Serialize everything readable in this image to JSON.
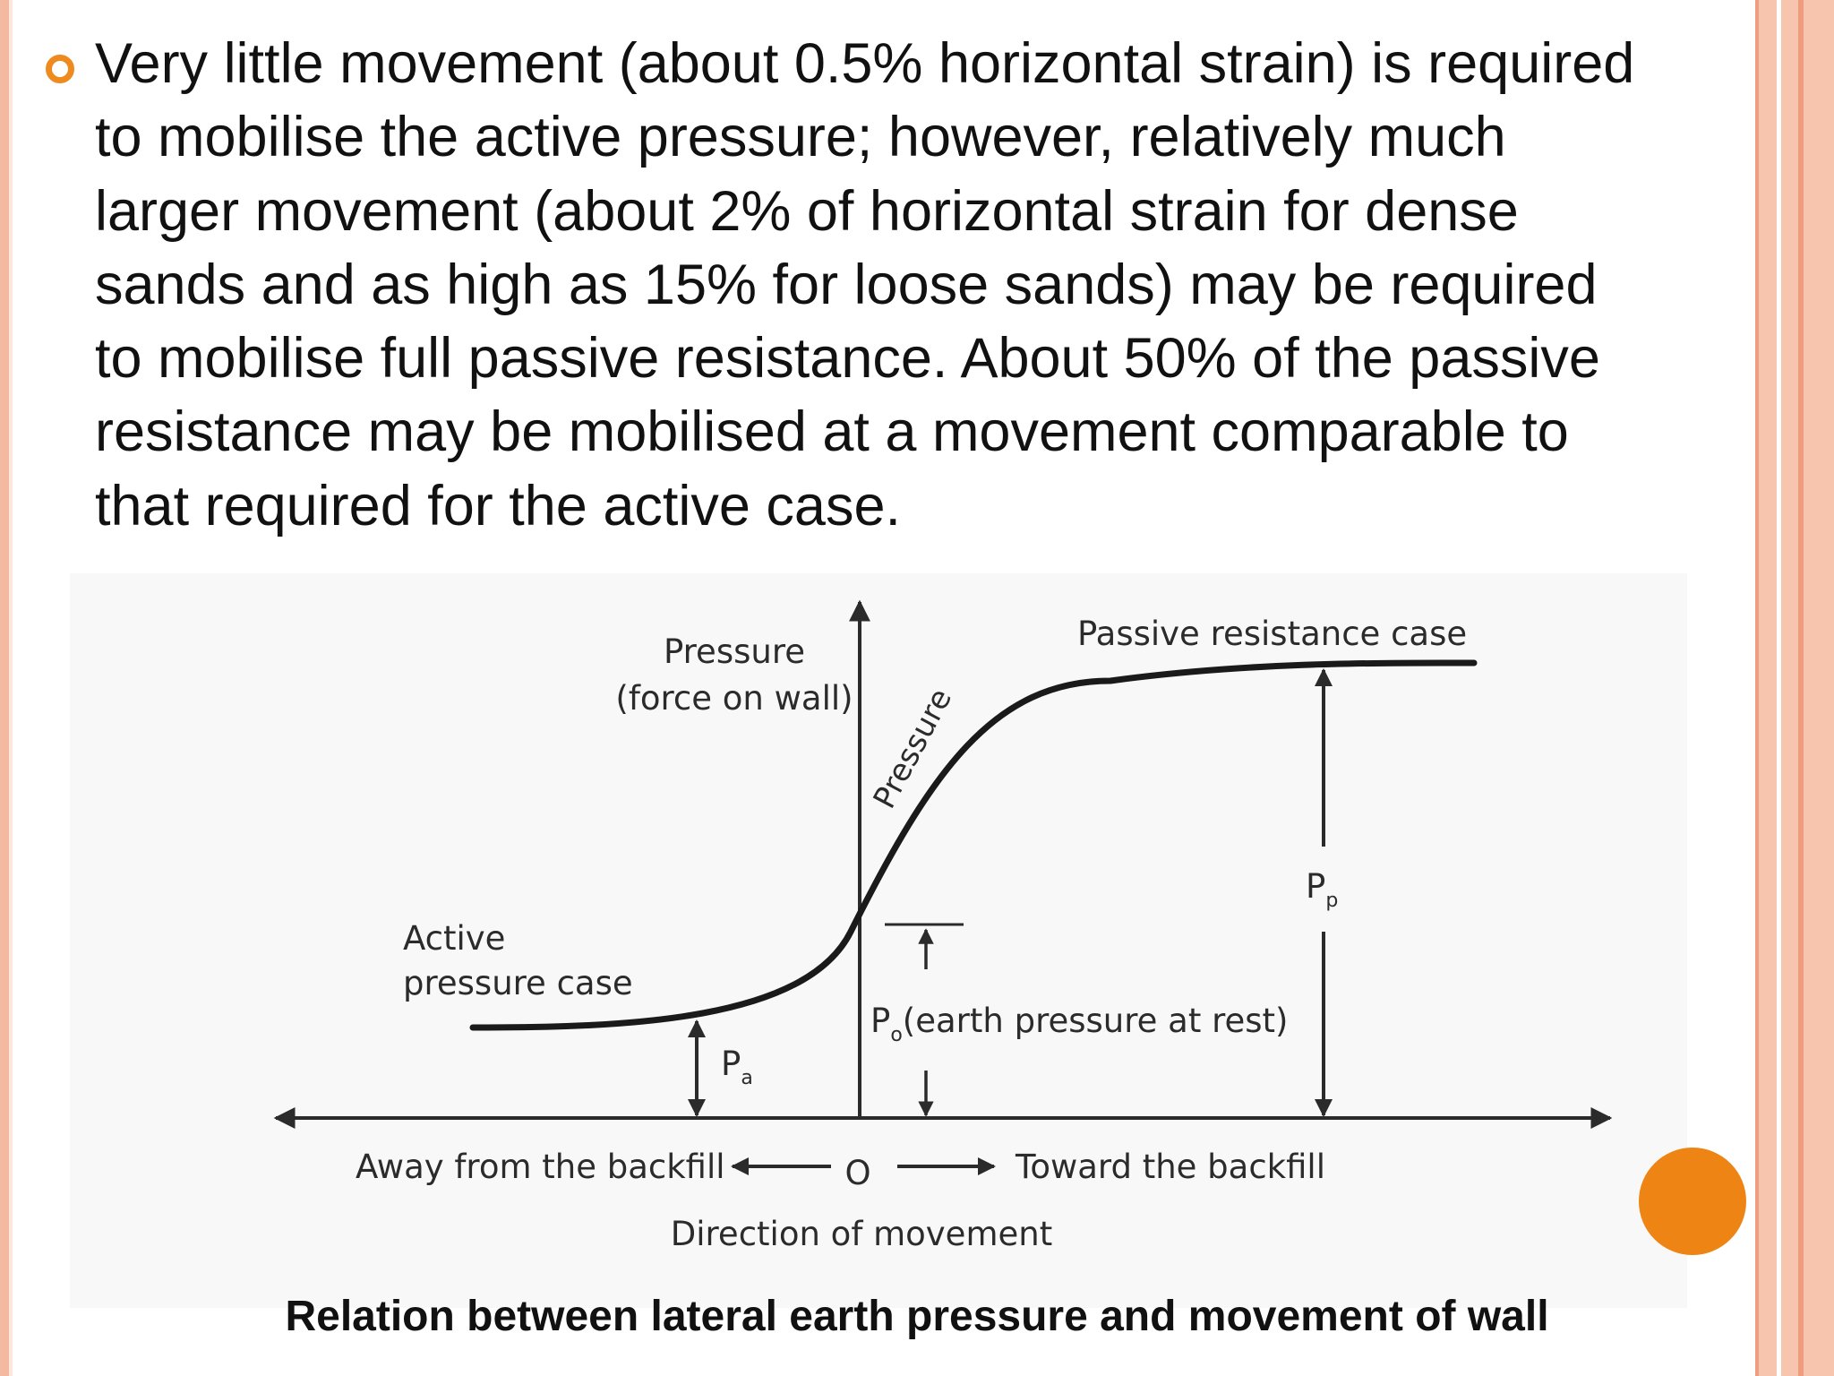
{
  "bullet": {
    "icon": "hollow-circle-bullet-icon",
    "lines": [
      "Very little movement (about 0.5% horizontal strain) is required",
      "to mobilise the active pressure; however, relatively much",
      "larger movement (about 2% of horizontal strain for dense",
      "sands and as high as 15% for loose sands) may be required",
      "to mobilise full passive resistance. About 50% of the passive",
      "resistance may be mobilised at a movement comparable to",
      "that required for the active case."
    ]
  },
  "figure": {
    "y_axis_label_1": "Pressure",
    "y_axis_label_2": "(force on wall)",
    "passive_label": "Passive resistance case",
    "curve_label": "Pressure",
    "active_label_1": "Active",
    "active_label_2": "pressure case",
    "pa_main": "P",
    "pa_sub": "a",
    "pp_main": "P",
    "pp_sub": "p",
    "po_main": "P",
    "po_sub": "o",
    "po_desc": "(earth pressure at rest)",
    "away_label": "Away from the backfill",
    "origin_label": "O",
    "toward_label": "Toward the backfill",
    "direction_label": "Direction of movement"
  },
  "caption": "Relation between lateral earth pressure and movement of wall",
  "colors": {
    "accent": "#ee8414",
    "border": "#f4b9a1",
    "text": "#111111",
    "figure_ink": "#2b2b2b"
  }
}
